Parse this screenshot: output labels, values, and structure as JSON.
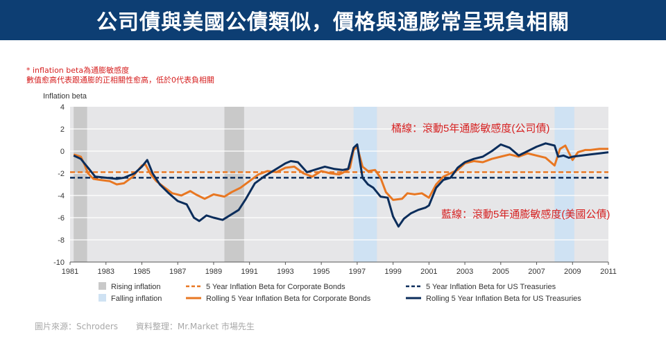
{
  "header": {
    "title": "公司債與美國公債類似，價格與通膨常呈現負相關"
  },
  "notes": {
    "line1": "* inflation  beta為通膨敏感度",
    "line2": "數值愈高代表跟通膨的正相關性愈高，低於0代表負相關"
  },
  "footer": {
    "source": "圖片來源：Schroders",
    "compiled": "資料整理：Mr.Market 市場先生"
  },
  "chart_data": {
    "type": "line",
    "ylabel": "Inflation beta",
    "ylim": [
      -10,
      4
    ],
    "yticks": [
      4,
      2,
      0,
      -2,
      -4,
      -6,
      -8,
      -10
    ],
    "xlim": [
      1981,
      2011
    ],
    "xticks": [
      1981,
      1983,
      1985,
      1987,
      1989,
      1991,
      1993,
      1995,
      1997,
      1999,
      2001,
      2003,
      2005,
      2007,
      2009,
      2011
    ],
    "rising_inflation_periods": [
      [
        1981.2,
        1981.95
      ],
      [
        1989.6,
        1990.7
      ]
    ],
    "falling_inflation_periods": [
      [
        1996.8,
        1998.1
      ],
      [
        2008.0,
        2009.1
      ]
    ],
    "colors": {
      "corporate": "#e87722",
      "treasury": "#0b2d5b",
      "rising": "#c9c9c9",
      "falling": "#cfe2f3",
      "plot_bg": "#e6e6e8"
    },
    "series": [
      {
        "name": "5 Year Inflation Beta for Corporate Bonds",
        "style": "dashed",
        "color": "#e87722",
        "x": [
          1981,
          2011
        ],
        "y": [
          -1.9,
          -1.9
        ]
      },
      {
        "name": "5 Year Inflation Beta for US Treasuries",
        "style": "dashed",
        "color": "#0b2d5b",
        "x": [
          1981,
          2011
        ],
        "y": [
          -2.4,
          -2.4
        ]
      },
      {
        "name": "Rolling 5 Year Inflation Beta for Corporate Bonds",
        "style": "solid",
        "color": "#e87722",
        "x": [
          1981.2,
          1981.6,
          1981.8,
          1982.0,
          1982.3,
          1982.7,
          1983.2,
          1983.6,
          1984.0,
          1984.5,
          1985.0,
          1985.2,
          1985.5,
          1985.8,
          1986.2,
          1986.7,
          1987.2,
          1987.7,
          1988.0,
          1988.5,
          1989.0,
          1989.6,
          1990.0,
          1990.5,
          1991.0,
          1991.5,
          1992.0,
          1992.5,
          1993.0,
          1993.5,
          1994.0,
          1994.5,
          1995.0,
          1995.5,
          1996.0,
          1996.4,
          1996.6,
          1996.8,
          1997.0,
          1997.3,
          1997.6,
          1998.0,
          1998.3,
          1998.6,
          1999.0,
          1999.5,
          1999.8,
          2000.2,
          2000.6,
          2001.0,
          2001.4,
          2001.8,
          2002.2,
          2002.6,
          2003.0,
          2003.5,
          2004.0,
          2004.5,
          2005.0,
          2005.5,
          2006.0,
          2006.5,
          2007.0,
          2007.5,
          2008.0,
          2008.3,
          2008.6,
          2009.0,
          2009.3,
          2009.7,
          2010.0,
          2010.5,
          2011.0
        ],
        "y": [
          -0.3,
          -0.5,
          -1.2,
          -2.0,
          -2.5,
          -2.6,
          -2.7,
          -3.0,
          -2.9,
          -2.3,
          -1.3,
          -1.2,
          -2.1,
          -2.7,
          -3.2,
          -3.8,
          -4.0,
          -3.6,
          -3.9,
          -4.3,
          -3.9,
          -4.1,
          -3.7,
          -3.3,
          -2.7,
          -2.1,
          -1.8,
          -1.9,
          -1.5,
          -1.4,
          -2.0,
          -2.3,
          -1.8,
          -2.0,
          -2.1,
          -1.8,
          -1.5,
          0.1,
          0.4,
          -1.4,
          -1.8,
          -1.7,
          -2.4,
          -3.7,
          -4.4,
          -4.3,
          -3.8,
          -3.9,
          -3.8,
          -4.2,
          -3.0,
          -2.3,
          -2.0,
          -1.7,
          -1.1,
          -0.9,
          -1.0,
          -0.7,
          -0.5,
          -0.3,
          -0.5,
          -0.2,
          -0.4,
          -0.6,
          -1.3,
          0.2,
          0.5,
          -0.8,
          -0.1,
          0.1,
          0.1,
          0.2,
          0.2
        ]
      },
      {
        "name": "Rolling 5 Year Inflation Beta for US Treasuries",
        "style": "solid",
        "color": "#0b2d5b",
        "x": [
          1981.2,
          1981.6,
          1982.0,
          1982.4,
          1983.0,
          1983.6,
          1984.0,
          1984.6,
          1985.0,
          1985.3,
          1985.6,
          1986.0,
          1986.5,
          1987.0,
          1987.5,
          1987.9,
          1988.2,
          1988.6,
          1989.0,
          1989.5,
          1990.0,
          1990.4,
          1990.8,
          1991.3,
          1991.8,
          1992.3,
          1993.0,
          1993.3,
          1993.7,
          1994.2,
          1994.8,
          1995.2,
          1995.7,
          1996.2,
          1996.5,
          1996.8,
          1997.0,
          1997.3,
          1997.6,
          1997.9,
          1998.3,
          1998.7,
          1999.0,
          1999.3,
          1999.6,
          2000.0,
          2000.4,
          2000.8,
          2001.0,
          2001.4,
          2001.8,
          2002.2,
          2002.6,
          2003.0,
          2003.5,
          2004.0,
          2004.5,
          2005.0,
          2005.5,
          2006.0,
          2006.5,
          2007.0,
          2007.5,
          2008.0,
          2008.2,
          2008.5,
          2008.8,
          2009.0,
          2009.5,
          2010.0,
          2010.5,
          2011.0
        ],
        "y": [
          -0.4,
          -0.7,
          -1.5,
          -2.3,
          -2.4,
          -2.5,
          -2.4,
          -2.0,
          -1.4,
          -0.8,
          -2.0,
          -3.0,
          -3.8,
          -4.5,
          -4.8,
          -6.0,
          -6.3,
          -5.8,
          -6.0,
          -6.2,
          -5.7,
          -5.3,
          -4.3,
          -2.9,
          -2.3,
          -1.8,
          -1.1,
          -0.9,
          -1.0,
          -1.9,
          -1.6,
          -1.4,
          -1.6,
          -1.7,
          -1.6,
          0.3,
          0.6,
          -2.4,
          -3.0,
          -3.3,
          -4.1,
          -4.2,
          -5.9,
          -6.8,
          -6.1,
          -5.6,
          -5.3,
          -5.1,
          -4.9,
          -3.3,
          -2.6,
          -2.4,
          -1.5,
          -1.0,
          -0.7,
          -0.5,
          0.0,
          0.6,
          0.3,
          -0.4,
          0.0,
          0.4,
          0.7,
          0.5,
          -0.5,
          -0.4,
          -0.6,
          -0.5,
          -0.4,
          -0.3,
          -0.2,
          -0.1
        ]
      }
    ],
    "annotations": [
      {
        "text": "橘線：滾動5年通膨敏感度(公司債)",
        "color": "#d62020"
      },
      {
        "text": "藍線：滾動5年通膨敏感度(美國公債)",
        "color": "#d62020"
      }
    ],
    "legend": [
      {
        "label": "Rising inflation",
        "kind": "swatch",
        "color": "#c9c9c9"
      },
      {
        "label": "5 Year Inflation Beta for Corporate Bonds",
        "kind": "dashed",
        "color": "#e87722"
      },
      {
        "label": "5 Year Inflation Beta for US Treasuries",
        "kind": "dashed",
        "color": "#0b2d5b"
      },
      {
        "label": "Falling inflation",
        "kind": "swatch",
        "color": "#cfe2f3"
      },
      {
        "label": "Rolling 5 Year Inflation Beta for Corporate Bonds",
        "kind": "line",
        "color": "#e87722"
      },
      {
        "label": "Rolling 5 Year Inflation Beta for US Treasuries",
        "kind": "line",
        "color": "#0b2d5b"
      }
    ],
    "legend_position": "bottom"
  }
}
